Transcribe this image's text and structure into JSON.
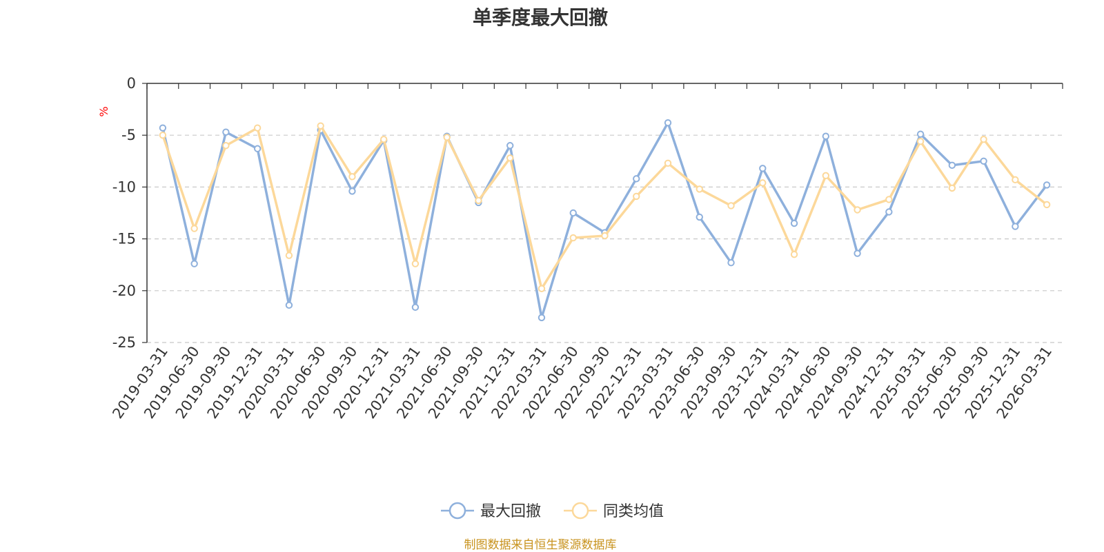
{
  "chart_data": {
    "type": "line",
    "title": "单季度最大回撤",
    "ylabel": "%",
    "xlabel": "",
    "ylim": [
      -25,
      0
    ],
    "yticks": [
      0,
      -5,
      -10,
      -15,
      -20,
      -25
    ],
    "grid": true,
    "legend_position": "bottom-center",
    "categories": [
      "2019-03-31",
      "2019-06-30",
      "2019-09-30",
      "2019-12-31",
      "2020-03-31",
      "2020-06-30",
      "2020-09-30",
      "2020-12-31",
      "2021-03-31",
      "2021-06-30",
      "2021-09-30",
      "2021-12-31",
      "2022-03-31",
      "2022-06-30",
      "2022-09-30",
      "2022-12-31",
      "2023-03-31",
      "2023-06-30",
      "2023-09-30",
      "2023-12-31",
      "2024-03-31",
      "2024-06-30",
      "2024-09-30",
      "2024-12-31",
      "2025-03-31",
      "2025-06-30",
      "2025-09-30",
      "2025-12-31",
      "2026-03-31"
    ],
    "series": [
      {
        "name": "最大回撤",
        "color": "#8eb0dc",
        "values": [
          -4.3,
          -17.4,
          -4.7,
          -6.3,
          -21.4,
          -4.5,
          -10.4,
          -5.5,
          -21.6,
          -5.1,
          -11.5,
          -6.0,
          -22.6,
          -12.5,
          -14.4,
          -9.2,
          -3.8,
          -12.9,
          -17.3,
          -8.2,
          -13.5,
          -5.1,
          -16.4,
          -12.4,
          -4.9,
          -7.9,
          -7.5,
          -13.8,
          -9.8
        ]
      },
      {
        "name": "同类均值",
        "color": "#fcd89a",
        "values": [
          -5.0,
          -14.0,
          -6.0,
          -4.3,
          -16.6,
          -4.1,
          -9.0,
          -5.4,
          -17.4,
          -5.2,
          -11.3,
          -7.2,
          -19.8,
          -14.9,
          -14.7,
          -10.9,
          -7.7,
          -10.2,
          -11.8,
          -9.6,
          -16.5,
          -8.9,
          -12.2,
          -11.2,
          -5.6,
          -10.1,
          -5.4,
          -9.3,
          -11.7
        ]
      }
    ]
  },
  "source_note": "制图数据来自恒生聚源数据库"
}
